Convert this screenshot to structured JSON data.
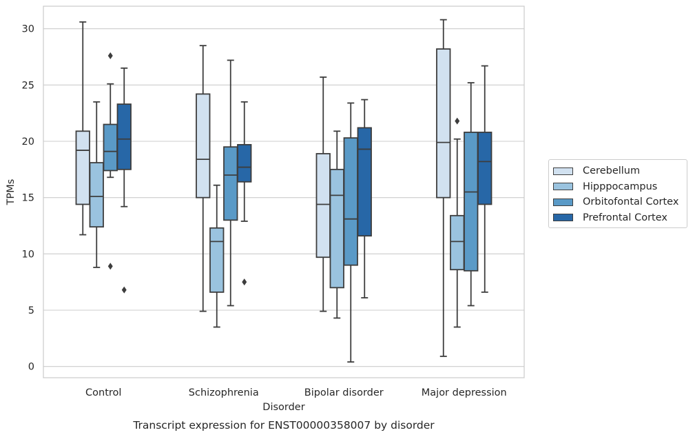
{
  "chart_data": {
    "type": "boxplot",
    "title": "Transcript expression for ENST00000358007 by disorder",
    "xlabel": "Disorder",
    "ylabel": "TPMs",
    "ylim": [
      -1,
      32
    ],
    "yticks": [
      0,
      5,
      10,
      15,
      20,
      25,
      30
    ],
    "grid": "horizontal",
    "legend_placement": "right, outside",
    "categories": [
      "Control",
      "Schizophrenia",
      "Bipolar disorder",
      "Major depression"
    ],
    "series": [
      {
        "name": "Cerebellum",
        "color": "#d1e1f0",
        "boxes": [
          {
            "whislo": 11.7,
            "q1": 14.4,
            "med": 19.2,
            "q3": 20.9,
            "whishi": 30.6,
            "fliers": []
          },
          {
            "whislo": 4.9,
            "q1": 15.0,
            "med": 18.4,
            "q3": 24.2,
            "whishi": 28.5,
            "fliers": []
          },
          {
            "whislo": 4.9,
            "q1": 9.7,
            "med": 14.4,
            "q3": 18.9,
            "whishi": 25.7,
            "fliers": []
          },
          {
            "whislo": 0.9,
            "q1": 15.0,
            "med": 19.9,
            "q3": 28.2,
            "whishi": 30.8,
            "fliers": []
          }
        ]
      },
      {
        "name": "Hipppocampus",
        "color": "#9ac3df",
        "boxes": [
          {
            "whislo": 8.8,
            "q1": 12.4,
            "med": 15.1,
            "q3": 18.1,
            "whishi": 23.5,
            "fliers": []
          },
          {
            "whislo": 3.5,
            "q1": 6.6,
            "med": 11.1,
            "q3": 12.3,
            "whishi": 16.1,
            "fliers": []
          },
          {
            "whislo": 4.3,
            "q1": 7.0,
            "med": 15.2,
            "q3": 17.5,
            "whishi": 20.9,
            "fliers": []
          },
          {
            "whislo": 3.5,
            "q1": 8.6,
            "med": 11.1,
            "q3": 13.4,
            "whishi": 20.2,
            "fliers": [
              21.8
            ]
          }
        ]
      },
      {
        "name": "Orbitofontal Cortex",
        "color": "#5a9ac7",
        "boxes": [
          {
            "whislo": 16.8,
            "q1": 17.4,
            "med": 19.1,
            "q3": 21.5,
            "whishi": 25.1,
            "fliers": [
              27.6,
              8.9
            ]
          },
          {
            "whislo": 5.4,
            "q1": 13.0,
            "med": 17.0,
            "q3": 19.5,
            "whishi": 27.2,
            "fliers": []
          },
          {
            "whislo": 0.4,
            "q1": 9.0,
            "med": 13.1,
            "q3": 20.3,
            "whishi": 23.4,
            "fliers": []
          },
          {
            "whislo": 5.4,
            "q1": 8.5,
            "med": 15.5,
            "q3": 20.8,
            "whishi": 25.2,
            "fliers": []
          }
        ]
      },
      {
        "name": "Prefrontal Cortex",
        "color": "#2767a7",
        "boxes": [
          {
            "whislo": 14.2,
            "q1": 17.5,
            "med": 20.2,
            "q3": 23.3,
            "whishi": 26.5,
            "fliers": [
              6.8
            ]
          },
          {
            "whislo": 12.9,
            "q1": 16.4,
            "med": 17.7,
            "q3": 19.7,
            "whishi": 23.5,
            "fliers": [
              7.5
            ]
          },
          {
            "whislo": 6.1,
            "q1": 11.6,
            "med": 19.3,
            "q3": 21.2,
            "whishi": 23.7,
            "fliers": []
          },
          {
            "whislo": 6.6,
            "q1": 14.4,
            "med": 18.2,
            "q3": 20.8,
            "whishi": 26.7,
            "fliers": []
          }
        ]
      }
    ]
  }
}
